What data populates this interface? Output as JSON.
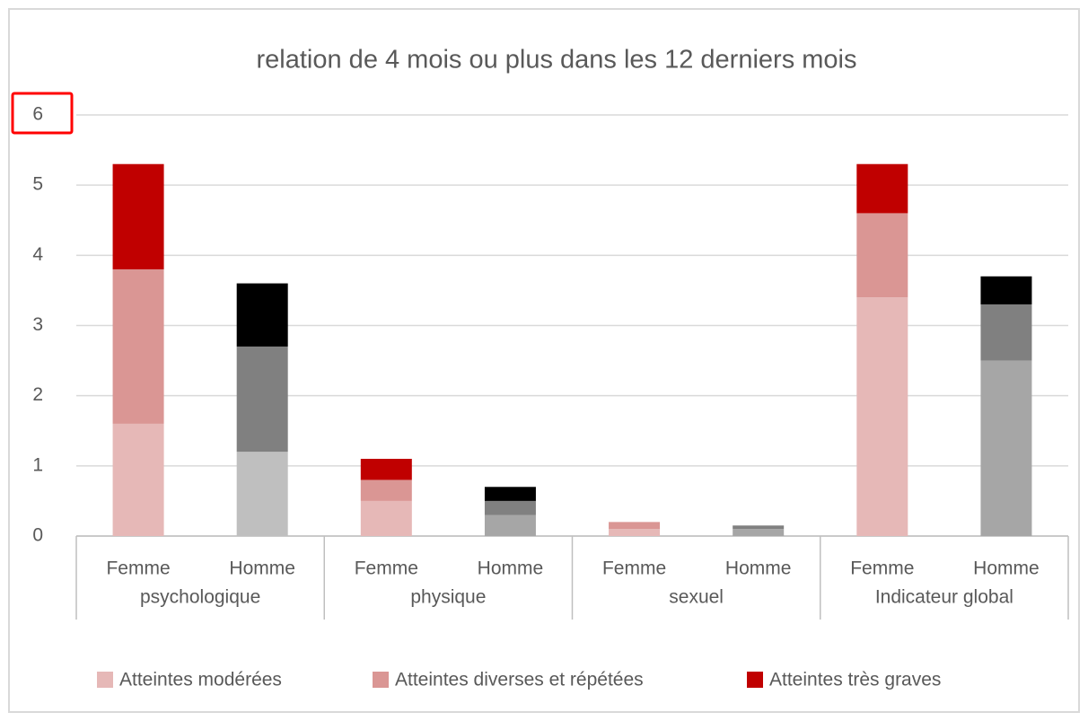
{
  "chart_data": {
    "type": "stacked-bar",
    "title": "relation de 4 mois ou plus dans les 12 derniers mois",
    "categories": [
      "Femme",
      "Homme",
      "Femme",
      "Homme",
      "Femme",
      "Homme",
      "Femme",
      "Homme"
    ],
    "groups": [
      "psychologique",
      "physique",
      "sexuel",
      "Indicateur global"
    ],
    "series": [
      {
        "name": "Atteintes modérées",
        "color": "#e6b8b7",
        "values": [
          1.6,
          1.2,
          0.5,
          0.3,
          0.1,
          0.1,
          3.4,
          2.5
        ],
        "colors": [
          "#e6b8b7",
          "#bfbfbf",
          "#e6b8b7",
          "#a6a6a6",
          "#e6b8b7",
          "#a6a6a6",
          "#e6b8b7",
          "#a6a6a6"
        ]
      },
      {
        "name": "Atteintes diverses et répétées",
        "color": "#da9694",
        "values": [
          2.2,
          1.5,
          0.3,
          0.2,
          0.1,
          0.05,
          1.2,
          0.8
        ],
        "colors": [
          "#da9694",
          "#808080",
          "#da9694",
          "#808080",
          "#da9694",
          "#808080",
          "#da9694",
          "#808080"
        ]
      },
      {
        "name": "Atteintes très graves",
        "color": "#c00000",
        "values": [
          1.5,
          0.9,
          0.3,
          0.2,
          0,
          0,
          0.7,
          0.4
        ],
        "colors": [
          "#c00000",
          "#000000",
          "#c00000",
          "#000000",
          "#c00000",
          "#000000",
          "#c00000",
          "#000000"
        ]
      }
    ],
    "ylim": [
      0,
      6
    ],
    "yticks": [
      0,
      1,
      2,
      3,
      4,
      5,
      6
    ],
    "grid": true,
    "legend": "bottom"
  }
}
